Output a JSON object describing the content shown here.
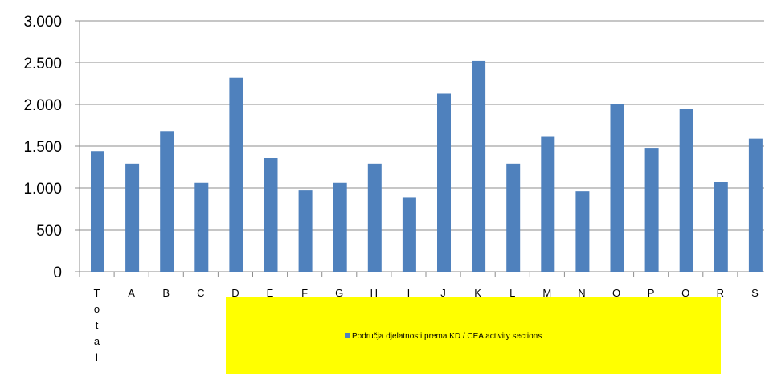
{
  "chart_data": {
    "type": "bar",
    "categories": [
      "Total",
      "A",
      "B",
      "C",
      "D",
      "E",
      "F",
      "G",
      "H",
      "I",
      "J",
      "K",
      "L",
      "M",
      "N",
      "O",
      "P",
      "Q",
      "R",
      "S"
    ],
    "series": [
      {
        "name": "Područja djelatnosti prema KD / CEA activity sections",
        "color": "#4F81BD",
        "values": [
          1440,
          1290,
          1680,
          1060,
          2320,
          1360,
          970,
          1060,
          1290,
          890,
          2130,
          2520,
          1290,
          1620,
          960,
          2000,
          1480,
          1950,
          1070,
          1590
        ]
      }
    ],
    "ylim": [
      0,
      3000
    ],
    "yticks": [
      0,
      500,
      1000,
      1500,
      2000,
      2500,
      3000
    ],
    "ytick_labels": [
      "0",
      "500",
      "1.000",
      "1.500",
      "2.000",
      "2.500",
      "3.000"
    ],
    "grid": true,
    "legend_position": "bottom",
    "legend_background": "#FFFF00",
    "title": "",
    "xlabel": "",
    "ylabel": ""
  }
}
